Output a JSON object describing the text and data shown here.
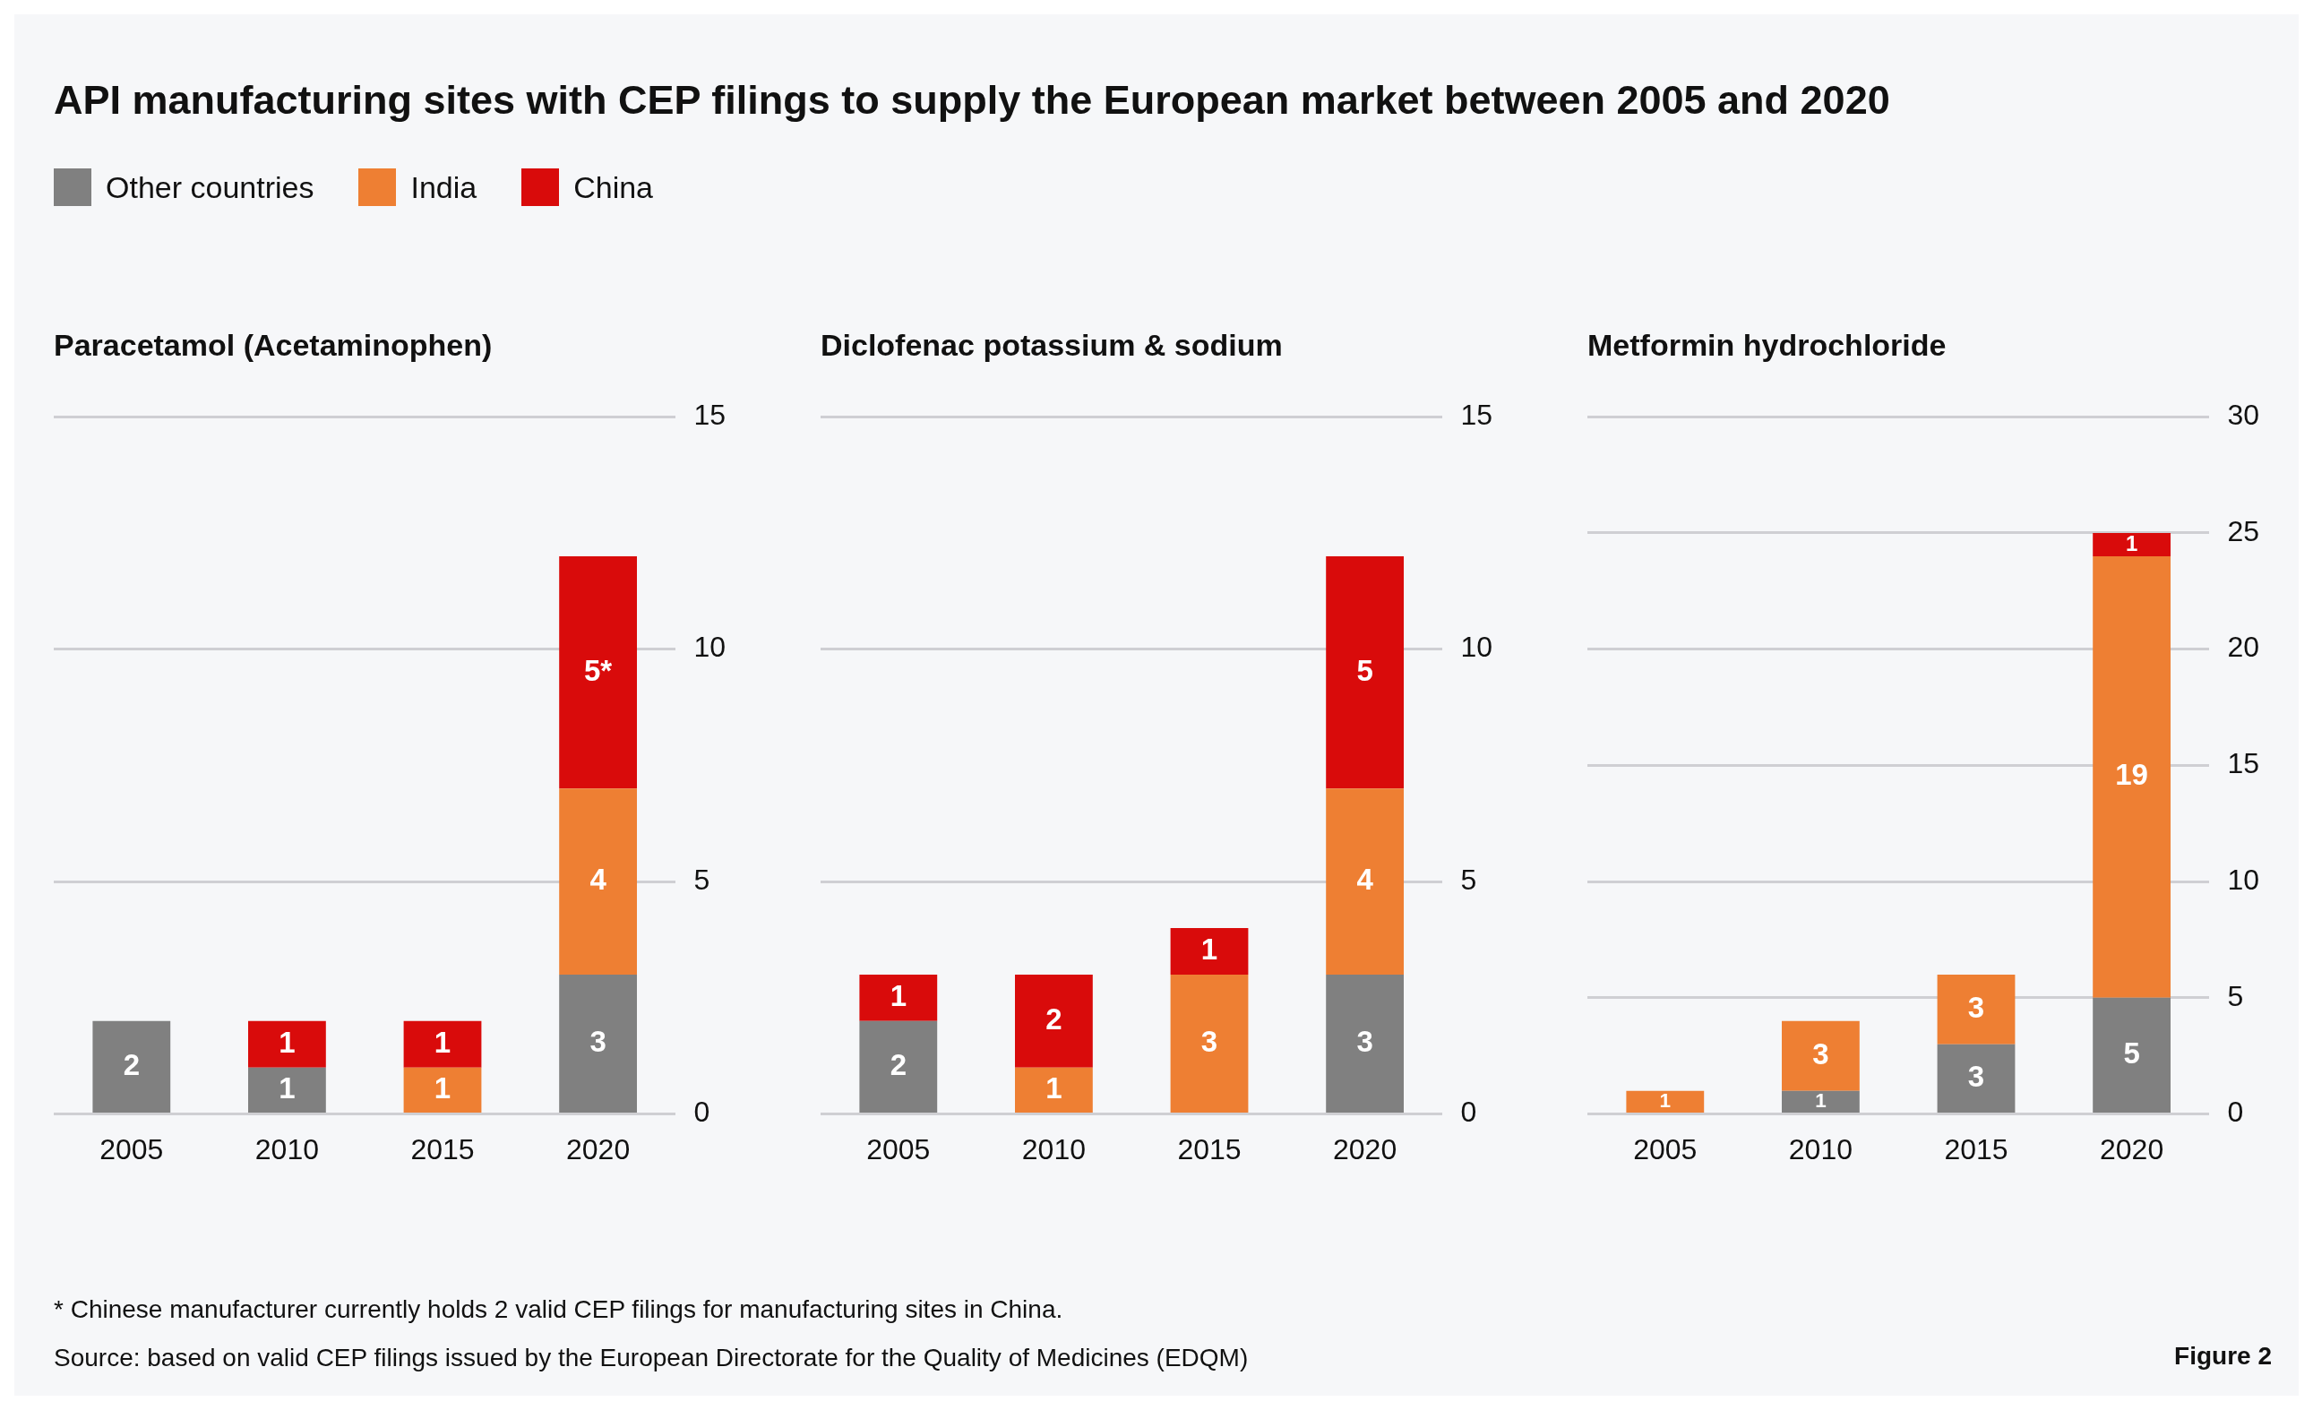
{
  "chart_data": [
    {
      "type": "bar",
      "title": "API manufacturing sites with CEP filings to supply the European market between 2005 and 2020",
      "subtitle": "Paracetamol (Acetaminophen)",
      "categories": [
        "2005",
        "2010",
        "2015",
        "2020"
      ],
      "stacked": true,
      "legend": "top left",
      "grid": "y",
      "ylim": [
        0,
        15
      ],
      "yticks": [
        0,
        5,
        10,
        15
      ],
      "series": [
        {
          "name": "Other countries",
          "color": "#808080",
          "values": [
            2,
            1,
            null,
            3
          ],
          "value_labels": [
            "2",
            "1",
            null,
            "3"
          ]
        },
        {
          "name": "India",
          "color": "#ee7f33",
          "values": [
            null,
            null,
            1,
            4
          ],
          "value_labels": [
            null,
            null,
            "1",
            "4"
          ]
        },
        {
          "name": "China",
          "color": "#d90b0b",
          "values": [
            null,
            1,
            1,
            5
          ],
          "value_labels": [
            null,
            "1",
            "1",
            "5*"
          ]
        }
      ],
      "annotations": [
        "* Chinese manufacturer currently holds 2 valid CEP filings for manufacturing sites in China.",
        "Source: based on valid CEP filings issued by the European Directorate for the Quality of Medicines (EDQM)",
        "Figure 2"
      ]
    },
    {
      "type": "bar",
      "subtitle": "Diclofenac potassium & sodium",
      "categories": [
        "2005",
        "2010",
        "2015",
        "2020"
      ],
      "stacked": true,
      "grid": "y",
      "ylim": [
        0,
        15
      ],
      "yticks": [
        0,
        5,
        10,
        15
      ],
      "series": [
        {
          "color": "#808080",
          "values": [
            2,
            null,
            null,
            3
          ],
          "value_labels": [
            "2",
            null,
            null,
            "3"
          ]
        },
        {
          "color": "#ee7f33",
          "values": [
            null,
            1,
            3,
            4
          ],
          "value_labels": [
            null,
            "1",
            "3",
            "4"
          ]
        },
        {
          "color": "#d90b0b",
          "values": [
            1,
            2,
            1,
            5
          ],
          "value_labels": [
            "1",
            "2",
            "1",
            "5"
          ]
        }
      ]
    },
    {
      "type": "bar",
      "subtitle": "Metformin hydrochloride",
      "categories": [
        "2005",
        "2010",
        "2015",
        "2020"
      ],
      "stacked": true,
      "grid": "y",
      "ylim": [
        0,
        30
      ],
      "yticks": [
        0,
        5,
        10,
        15,
        20,
        25,
        30
      ],
      "series": [
        {
          "color": "#808080",
          "values": [
            null,
            1,
            3,
            5
          ],
          "value_labels": [
            null,
            "1",
            "3",
            "5"
          ]
        },
        {
          "color": "#ee7f33",
          "values": [
            1,
            3,
            3,
            19
          ],
          "value_labels": [
            "1",
            "3",
            "3",
            "19"
          ]
        },
        {
          "color": "#d90b0b",
          "values": [
            null,
            null,
            null,
            1
          ],
          "value_labels": [
            null,
            null,
            null,
            "1"
          ]
        }
      ]
    }
  ]
}
